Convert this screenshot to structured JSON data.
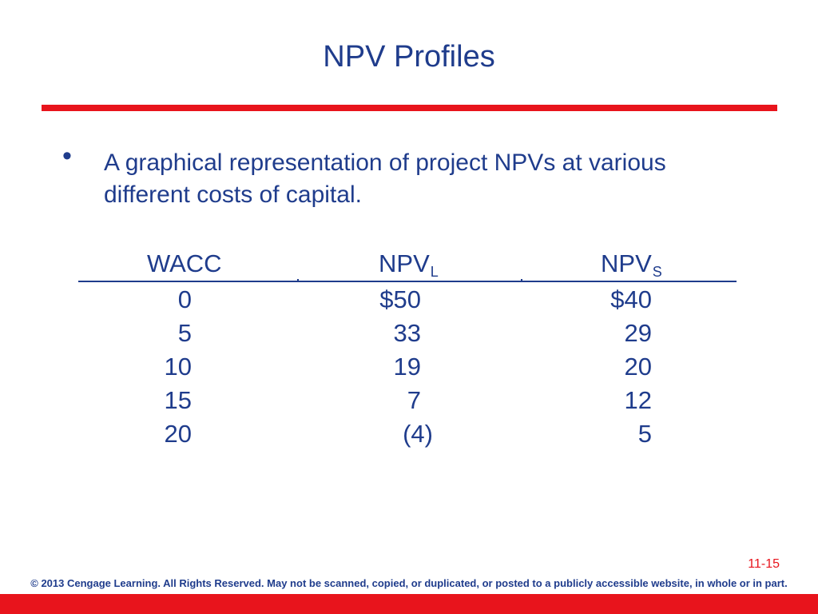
{
  "slide": {
    "title": "NPV Profiles",
    "bullet": "A graphical representation of project NPVs at various different costs of capital.",
    "page_number": "11-15",
    "copyright": "© 2013 Cengage Learning. All Rights Reserved. May not be scanned, copied, or duplicated, or posted to a publicly accessible website, in whole or in part."
  },
  "table": {
    "headers": {
      "wacc": "WACC",
      "npv_l_base": "NPV",
      "npv_l_sub": "L",
      "npv_s_base": "NPV",
      "npv_s_sub": "S"
    },
    "rows": [
      {
        "wacc": "0",
        "npv_l": "$50",
        "npv_s": "$40"
      },
      {
        "wacc": "5",
        "npv_l": "33",
        "npv_s": "29"
      },
      {
        "wacc": "10",
        "npv_l": "19",
        "npv_s": "20"
      },
      {
        "wacc": "15",
        "npv_l": "7",
        "npv_s": "12"
      },
      {
        "wacc": "20",
        "npv_l": "(4)",
        "npv_s": "5"
      }
    ]
  },
  "colors": {
    "title_blue": "#1f3c8c",
    "accent_red": "#e8141c"
  }
}
